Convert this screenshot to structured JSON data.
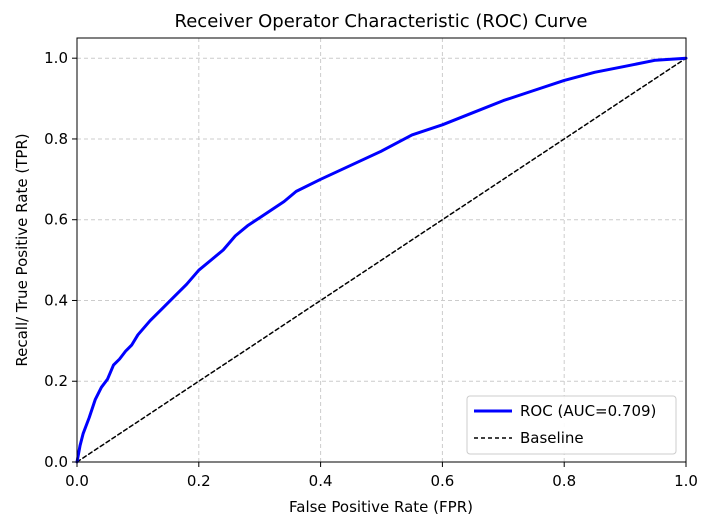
{
  "chart_data": {
    "type": "line",
    "title": "Receiver Operator Characteristic (ROC) Curve",
    "xlabel": "False Positive Rate (FPR)",
    "ylabel": "Recall/ True Positive Rate (TPR)",
    "xlim": [
      0.0,
      1.0
    ],
    "ylim": [
      0.0,
      1.05
    ],
    "x_ticks": [
      "0.0",
      "0.2",
      "0.4",
      "0.6",
      "0.8",
      "1.0"
    ],
    "y_ticks": [
      "0.0",
      "0.2",
      "0.4",
      "0.6",
      "0.8",
      "1.0"
    ],
    "grid": true,
    "legend_position": "bottom-right",
    "series": [
      {
        "name": "ROC (AUC=0.709)",
        "color": "#0000ff",
        "style": "solid",
        "points": [
          [
            0.0,
            0.0
          ],
          [
            0.005,
            0.04
          ],
          [
            0.01,
            0.07
          ],
          [
            0.02,
            0.11
          ],
          [
            0.03,
            0.155
          ],
          [
            0.04,
            0.185
          ],
          [
            0.05,
            0.205
          ],
          [
            0.06,
            0.24
          ],
          [
            0.07,
            0.255
          ],
          [
            0.08,
            0.275
          ],
          [
            0.09,
            0.29
          ],
          [
            0.1,
            0.315
          ],
          [
            0.12,
            0.35
          ],
          [
            0.14,
            0.38
          ],
          [
            0.16,
            0.41
          ],
          [
            0.18,
            0.44
          ],
          [
            0.2,
            0.475
          ],
          [
            0.22,
            0.5
          ],
          [
            0.24,
            0.525
          ],
          [
            0.26,
            0.56
          ],
          [
            0.28,
            0.585
          ],
          [
            0.3,
            0.605
          ],
          [
            0.32,
            0.625
          ],
          [
            0.34,
            0.645
          ],
          [
            0.36,
            0.67
          ],
          [
            0.4,
            0.7
          ],
          [
            0.45,
            0.735
          ],
          [
            0.5,
            0.77
          ],
          [
            0.55,
            0.81
          ],
          [
            0.6,
            0.835
          ],
          [
            0.65,
            0.865
          ],
          [
            0.7,
            0.895
          ],
          [
            0.75,
            0.92
          ],
          [
            0.8,
            0.945
          ],
          [
            0.85,
            0.965
          ],
          [
            0.9,
            0.98
          ],
          [
            0.95,
            0.995
          ],
          [
            1.0,
            1.0
          ]
        ]
      },
      {
        "name": "Baseline",
        "color": "#000000",
        "style": "dashed",
        "points": [
          [
            0.0,
            0.0
          ],
          [
            1.0,
            1.0
          ]
        ]
      }
    ]
  }
}
